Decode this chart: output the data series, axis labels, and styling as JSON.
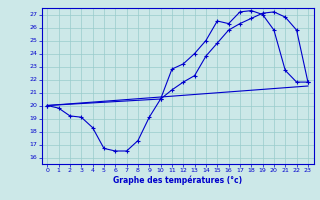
{
  "title": "Graphe des températures (°c)",
  "bg_color": "#cce8e8",
  "grid_color": "#99cccc",
  "line_color": "#0000cc",
  "xlim": [
    -0.5,
    23.5
  ],
  "ylim": [
    15.5,
    27.5
  ],
  "yticks": [
    16,
    17,
    18,
    19,
    20,
    21,
    22,
    23,
    24,
    25,
    26,
    27
  ],
  "xticks": [
    0,
    1,
    2,
    3,
    4,
    5,
    6,
    7,
    8,
    9,
    10,
    11,
    12,
    13,
    14,
    15,
    16,
    17,
    18,
    19,
    20,
    21,
    22,
    23
  ],
  "line1_x": [
    0,
    1,
    2,
    3,
    4,
    5,
    6,
    7,
    8,
    9,
    10,
    11,
    12,
    13,
    14,
    15,
    16,
    17,
    18,
    19,
    20,
    21,
    22,
    23
  ],
  "line1_y": [
    20.0,
    19.8,
    19.2,
    19.1,
    18.3,
    16.7,
    16.5,
    16.5,
    17.3,
    19.1,
    20.5,
    22.8,
    23.2,
    24.0,
    25.0,
    26.5,
    26.3,
    27.2,
    27.3,
    27.0,
    25.8,
    22.7,
    21.8,
    21.8
  ],
  "line2_x": [
    0,
    10,
    11,
    12,
    13,
    14,
    15,
    16,
    17,
    18,
    19,
    20,
    21,
    22,
    23
  ],
  "line2_y": [
    20.0,
    20.5,
    21.2,
    21.8,
    22.3,
    23.8,
    24.8,
    25.8,
    26.3,
    26.7,
    27.1,
    27.2,
    26.8,
    25.8,
    21.8
  ],
  "line3_x": [
    0,
    23
  ],
  "line3_y": [
    20.0,
    21.5
  ]
}
